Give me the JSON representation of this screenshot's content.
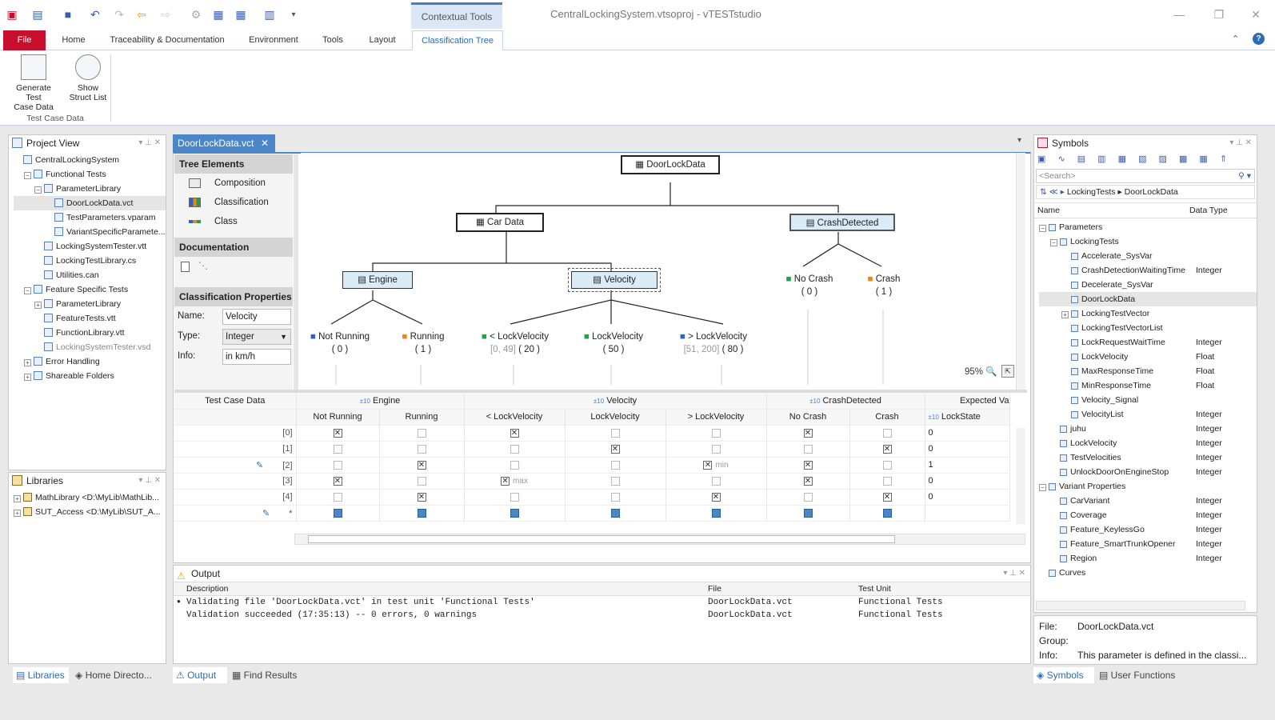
{
  "window": {
    "title": "CentralLockingSystem.vtsoproj - vTESTstudio",
    "contextual_tools": "Contextual Tools"
  },
  "ribbon_tabs": [
    "File",
    "Home",
    "Traceability & Documentation",
    "Environment",
    "Tools",
    "Layout",
    "Classification Tree"
  ],
  "ribbon_buttons": [
    {
      "line1": "Generate Test",
      "line2": "Case Data"
    },
    {
      "line1": "Show",
      "line2": "Struct List"
    }
  ],
  "ribbon_group": "Test Case Data",
  "project_view": {
    "title": "Project View",
    "items": [
      {
        "label": "CentralLockingSystem",
        "level": 0
      },
      {
        "label": "Functional Tests",
        "level": 1,
        "expander": "−"
      },
      {
        "label": "ParameterLibrary",
        "level": 2,
        "expander": "−"
      },
      {
        "label": "DoorLockData.vct",
        "level": 3,
        "selected": true
      },
      {
        "label": "TestParameters.vparam",
        "level": 3
      },
      {
        "label": "VariantSpecificParamete...",
        "level": 3
      },
      {
        "label": "LockingSystemTester.vtt",
        "level": 2
      },
      {
        "label": "LockingTestLibrary.cs",
        "level": 2
      },
      {
        "label": "Utilities.can",
        "level": 2
      },
      {
        "label": "Feature Specific Tests",
        "level": 1,
        "expander": "−"
      },
      {
        "label": "ParameterLibrary",
        "level": 2,
        "expander": "+"
      },
      {
        "label": "FeatureTests.vtt",
        "level": 2
      },
      {
        "label": "FunctionLibrary.vtt",
        "level": 2
      },
      {
        "label": "LockingSystemTester.vsd",
        "level": 2,
        "dim": true
      },
      {
        "label": "Error Handling",
        "level": 1,
        "expander": "+"
      },
      {
        "label": "Shareable Folders",
        "level": 1,
        "expander": "+"
      }
    ]
  },
  "libraries": {
    "title": "Libraries",
    "items": [
      "MathLibrary <D:\\MyLib\\MathLib...",
      "SUT_Access <D:\\MyLib\\SUT_A..."
    ]
  },
  "bottom_left_tabs": [
    "Libraries",
    "Home Directo..."
  ],
  "doc_tab": "DoorLockData.vct",
  "tree_elements": {
    "title": "Tree Elements",
    "items": [
      "Composition",
      "Classification",
      "Class"
    ],
    "documentation": "Documentation"
  },
  "classification_properties": {
    "title": "Classification Properties",
    "name_label": "Name:",
    "name_value": "Velocity",
    "type_label": "Type:",
    "type_value": "Integer",
    "info_label": "Info:",
    "info_value": "in km/h"
  },
  "diagram": {
    "root": "DoorLockData",
    "car_data": "Car Data",
    "crash_detected": "CrashDetected",
    "engine": "Engine",
    "velocity": "Velocity",
    "classes": [
      {
        "label": "Not Running",
        "value": "( 0 )"
      },
      {
        "label": "Running",
        "value": "( 1 )"
      },
      {
        "label": "< LockVelocity",
        "range1": "[0, 49]",
        "value": "( 20 )"
      },
      {
        "label": "LockVelocity",
        "value": "( 50 )"
      },
      {
        "label": "> LockVelocity",
        "range1": "[51,",
        "range2": "200]",
        "value": "( 80 )"
      },
      {
        "label": "No Crash",
        "value": "( 0 )"
      },
      {
        "label": "Crash",
        "value": "( 1 )"
      }
    ],
    "zoom": "95%"
  },
  "grid": {
    "header_groups": [
      "Test Case Data",
      "Engine",
      "Velocity",
      "CrashDetected",
      "Expected Va"
    ],
    "columns": [
      "Not Running",
      "Running",
      "< LockVelocity",
      "LockVelocity",
      "> LockVelocity",
      "No Crash",
      "Crash",
      "LockState"
    ],
    "rows": [
      {
        "id": "[0]",
        "cells": [
          "x",
          "",
          "x",
          "",
          "",
          "x",
          "",
          ""
        ],
        "state": "0",
        "notes": {}
      },
      {
        "id": "[1]",
        "cells": [
          "",
          "",
          "",
          "x",
          "",
          "",
          "x",
          ""
        ],
        "state": "0",
        "notes": {}
      },
      {
        "id": "[2]",
        "cells": [
          "",
          "x",
          "",
          "",
          "x",
          "x",
          "",
          ""
        ],
        "state": "1",
        "notes": {
          "4": "min"
        },
        "edit": true
      },
      {
        "id": "[3]",
        "cells": [
          "x",
          "",
          "x",
          "",
          "",
          "x",
          "",
          ""
        ],
        "state": "0",
        "notes": {
          "2": "max"
        }
      },
      {
        "id": "[4]",
        "cells": [
          "",
          "x",
          "",
          "",
          "x",
          "",
          "x",
          ""
        ],
        "state": "0",
        "notes": {}
      },
      {
        "id": "*",
        "cells": [
          "n",
          "n",
          "n",
          "n",
          "n",
          "n",
          "n",
          ""
        ],
        "state": "",
        "notes": {},
        "edit": true
      }
    ]
  },
  "output": {
    "title": "Output",
    "columns": [
      "Description",
      "File",
      "Test Unit"
    ],
    "rows": [
      {
        "desc": "Validating file 'DoorLockData.vct' in test unit 'Functional Tests'",
        "file": "DoorLockData.vct",
        "unit": "Functional Tests"
      },
      {
        "desc": "Validation succeeded (17:35:13) -- 0 errors, 0 warnings",
        "file": "DoorLockData.vct",
        "unit": "Functional Tests"
      }
    ],
    "tabs": [
      "Output",
      "Find Results"
    ]
  },
  "symbols": {
    "title": "Symbols",
    "search_placeholder": "<Search>",
    "breadcrumb": [
      "LockingTests",
      "DoorLockData"
    ],
    "col_name": "Name",
    "col_type": "Data Type",
    "items": [
      {
        "label": "Parameters",
        "level": 0,
        "type": "",
        "expander": "−"
      },
      {
        "label": "LockingTests",
        "level": 1,
        "type": "",
        "expander": "−"
      },
      {
        "label": "Accelerate_SysVar",
        "level": 2,
        "type": ""
      },
      {
        "label": "CrashDetectionWaitingTime",
        "level": 2,
        "type": "Integer"
      },
      {
        "label": "Decelerate_SysVar",
        "level": 2,
        "type": ""
      },
      {
        "label": "DoorLockData",
        "level": 2,
        "type": "",
        "selected": true
      },
      {
        "label": "LockingTestVector",
        "level": 2,
        "type": "",
        "expander": "+"
      },
      {
        "label": "LockingTestVectorList",
        "level": 2,
        "type": ""
      },
      {
        "label": "LockRequestWaitTime",
        "level": 2,
        "type": "Integer"
      },
      {
        "label": "LockVelocity",
        "level": 2,
        "type": "Float"
      },
      {
        "label": "MaxResponseTime",
        "level": 2,
        "type": "Float"
      },
      {
        "label": "MinResponseTime",
        "level": 2,
        "type": "Float"
      },
      {
        "label": "Velocity_Signal",
        "level": 2,
        "type": ""
      },
      {
        "label": "VelocityList",
        "level": 2,
        "type": "Integer"
      },
      {
        "label": "juhu",
        "level": 1,
        "type": "Integer"
      },
      {
        "label": "LockVelocity",
        "level": 1,
        "type": "Integer"
      },
      {
        "label": "TestVelocities",
        "level": 1,
        "type": "Integer"
      },
      {
        "label": "UnlockDoorOnEngineStop",
        "level": 1,
        "type": "Integer"
      },
      {
        "label": "Variant Properties",
        "level": 0,
        "type": "",
        "expander": "−"
      },
      {
        "label": "CarVariant",
        "level": 1,
        "type": "Integer"
      },
      {
        "label": "Coverage",
        "level": 1,
        "type": "Integer"
      },
      {
        "label": "Feature_KeylessGo",
        "level": 1,
        "type": "Integer"
      },
      {
        "label": "Feature_SmartTrunkOpener",
        "level": 1,
        "type": "Integer"
      },
      {
        "label": "Region",
        "level": 1,
        "type": "Integer"
      },
      {
        "label": "Curves",
        "level": 0,
        "type": ""
      }
    ],
    "footer": {
      "file_label": "File:",
      "file_value": "DoorLockData.vct",
      "group_label": "Group:",
      "group_value": "",
      "info_label": "Info:",
      "info_value": "This parameter is defined in the classi..."
    },
    "tabs": [
      "Symbols",
      "User Functions"
    ]
  }
}
